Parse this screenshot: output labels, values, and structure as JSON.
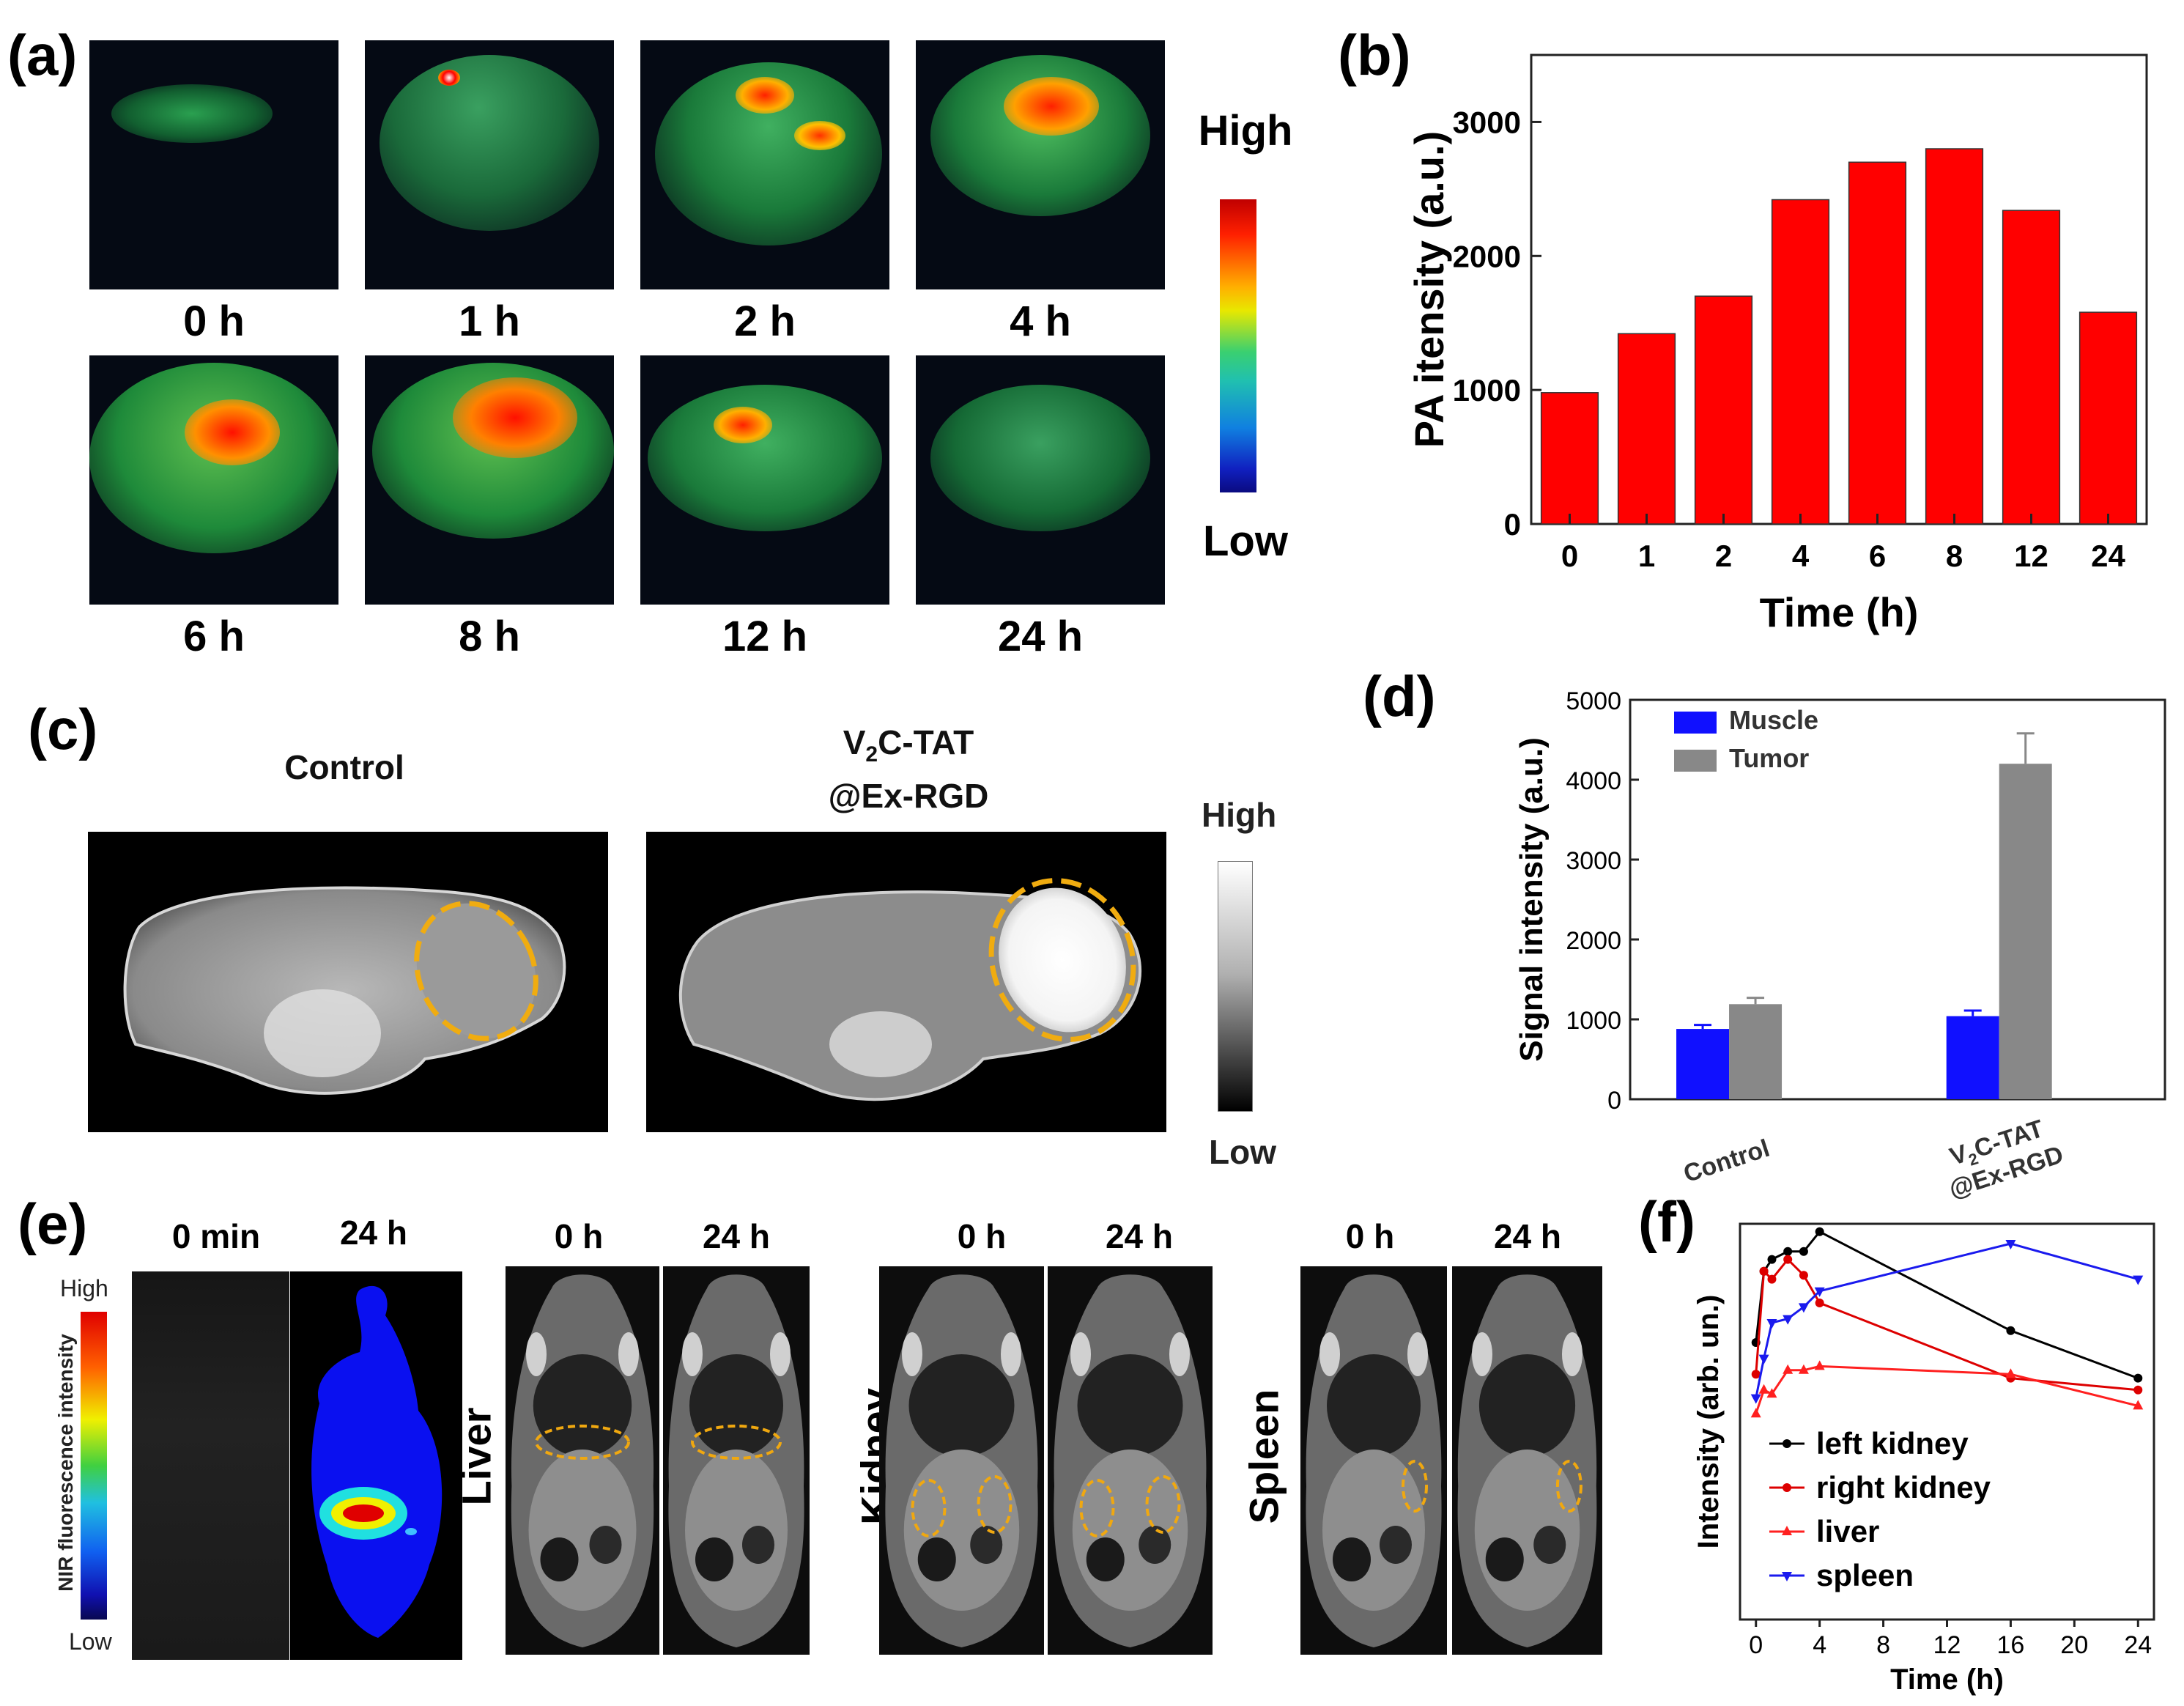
{
  "panel_labels": {
    "a": "(a)",
    "b": "(b)",
    "c": "(c)",
    "d": "(d)",
    "e": "(e)",
    "f": "(f)"
  },
  "panel_a": {
    "timepoints": [
      "0 h",
      "1 h",
      "2 h",
      "4 h",
      "6 h",
      "8 h",
      "12 h",
      "24 h"
    ],
    "colorbar": {
      "high": "High",
      "low": "Low"
    }
  },
  "panel_c": {
    "control_label": "Control",
    "treated_label_line1": "V",
    "treated_sub": "2",
    "treated_label_line1_rest": "C-TAT",
    "treated_label_line2": "@Ex-RGD",
    "colorbar": {
      "high": "High",
      "low": "Low"
    }
  },
  "panel_e": {
    "colorbar_title": "NIR fluorescence intensity",
    "colorbar": {
      "high": "High",
      "low": "Low"
    },
    "fluor_labels": [
      "0 min",
      "24 h"
    ],
    "organ_groups": [
      {
        "organ": "Liver",
        "labels": [
          "0 h",
          "24 h"
        ]
      },
      {
        "organ": "Kidney",
        "labels": [
          "0 h",
          "24 h"
        ]
      },
      {
        "organ": "Spleen",
        "labels": [
          "0 h",
          "24 h"
        ]
      }
    ]
  },
  "chart_data": [
    {
      "id": "b",
      "type": "bar",
      "categories": [
        "0",
        "1",
        "2",
        "4",
        "6",
        "8",
        "12",
        "24"
      ],
      "values": [
        980,
        1420,
        1700,
        2420,
        2700,
        2800,
        2340,
        1580
      ],
      "xlabel": "Time (h)",
      "ylabel": "PA itensity (a.u.)",
      "ylim": [
        0,
        3500
      ],
      "yticks": [
        0,
        1000,
        2000,
        3000
      ],
      "color": "#ff0000"
    },
    {
      "id": "d",
      "type": "bar",
      "categories": [
        "Control",
        "V2C-TAT @Ex-RGD"
      ],
      "category_line1": [
        "Control",
        "V"
      ],
      "category_sub": [
        "",
        "2"
      ],
      "category_line1_rest": [
        "",
        "C-TAT"
      ],
      "category_line2": [
        "",
        "@Ex-RGD"
      ],
      "series": [
        {
          "name": "Muscle",
          "values": [
            880,
            1040
          ],
          "errors": [
            50,
            70
          ],
          "color": "#1010ff"
        },
        {
          "name": "Tumor",
          "values": [
            1190,
            4200
          ],
          "errors": [
            80,
            380
          ],
          "color": "#888888"
        }
      ],
      "ylabel": "Signal intensity (a.u.)",
      "ylim": [
        0,
        5000
      ],
      "yticks": [
        0,
        1000,
        2000,
        3000,
        4000,
        5000
      ],
      "legend": "top-left"
    },
    {
      "id": "f",
      "type": "line",
      "xlabel": "Time (h)",
      "ylabel": "Intensity (arb. un.)",
      "xlim": [
        -1,
        25
      ],
      "ylim": [
        0,
        100
      ],
      "xticks": [
        0,
        4,
        8,
        12,
        16,
        20,
        24
      ],
      "legend": "bottom-right",
      "series": [
        {
          "name": "left kidney",
          "color": "#000000",
          "marker": "circle",
          "x": [
            0,
            0.5,
            1,
            2,
            3,
            4,
            16,
            24
          ],
          "y": [
            70,
            88,
            91,
            93,
            93,
            98,
            73,
            61
          ]
        },
        {
          "name": "right kidney",
          "color": "#dd0000",
          "marker": "circle",
          "x": [
            0,
            0.5,
            1,
            2,
            3,
            4,
            16,
            24
          ],
          "y": [
            62,
            88,
            86,
            91,
            87,
            80,
            61,
            58
          ]
        },
        {
          "name": "liver",
          "color": "#ff2020",
          "marker": "triangle",
          "x": [
            0,
            0.5,
            1,
            2,
            3,
            4,
            16,
            24
          ],
          "y": [
            52,
            58,
            57,
            63,
            63,
            64,
            62,
            54
          ]
        },
        {
          "name": "spleen",
          "color": "#1a1aee",
          "marker": "triangle-down",
          "x": [
            0,
            0.5,
            1,
            2,
            3,
            4,
            16,
            24
          ],
          "y": [
            56,
            66,
            75,
            76,
            79,
            83,
            95,
            86
          ]
        }
      ]
    }
  ]
}
